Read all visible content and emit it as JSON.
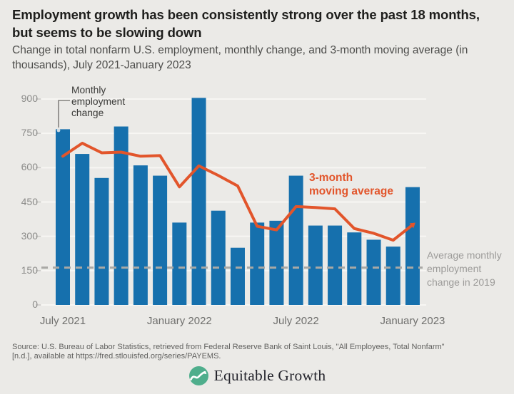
{
  "header": {
    "title": "Employment growth has been consistently strong over the past 18 months, but seems to be slowing down",
    "subtitle": "Change in total nonfarm U.S. employment, monthly change, and 3-month moving average (in thousands), July 2021-January 2023"
  },
  "chart_data": {
    "type": "bar",
    "title": "Employment growth has been consistently strong over the past 18 months, but seems to be slowing down",
    "subtitle": "Change in total nonfarm U.S. employment, monthly change, and 3-month moving average (in thousands), July 2021-January 2023",
    "unit": "thousands",
    "categories": [
      "Jul 2021",
      "Aug 2021",
      "Sep 2021",
      "Oct 2021",
      "Nov 2021",
      "Dec 2021",
      "Jan 2022",
      "Feb 2022",
      "Mar 2022",
      "Apr 2022",
      "May 2022",
      "Jun 2022",
      "Jul 2022",
      "Aug 2022",
      "Sep 2022",
      "Oct 2022",
      "Nov 2022",
      "Dec 2022",
      "Jan 2023"
    ],
    "series": [
      {
        "name": "Monthly employment change",
        "type": "bar",
        "color": "#1670ad",
        "values": [
          768,
          660,
          555,
          780,
          610,
          565,
          360,
          905,
          412,
          250,
          360,
          368,
          565,
          347,
          347,
          317,
          285,
          255,
          515
        ]
      },
      {
        "name": "3-month moving average",
        "type": "line",
        "color": "#e2552b",
        "values": [
          650,
          707,
          665,
          668,
          650,
          653,
          516,
          608,
          566,
          520,
          344,
          328,
          430,
          426,
          420,
          334,
          313,
          283,
          350
        ]
      }
    ],
    "reference_line": {
      "label": "Average monthly employment change in 2019",
      "value": 163,
      "style": "dashed",
      "color": "#a9a8a5"
    },
    "ylim": [
      0,
      900
    ],
    "yticks": [
      0,
      150,
      300,
      450,
      600,
      750,
      900
    ],
    "xticks": [
      {
        "index": 0,
        "label": "July 2021"
      },
      {
        "index": 6,
        "label": "January 2022"
      },
      {
        "index": 12,
        "label": "July 2022"
      },
      {
        "index": 18,
        "label": "January 2023"
      }
    ],
    "grid": "horizontal",
    "legend": "annotations-on-chart"
  },
  "annotations": {
    "bar_label": "Monthly\nemployment\nchange",
    "line_label": "3-month\nmoving average",
    "reference_label": "Average monthly\nemployment\nchange in 2019"
  },
  "footer": {
    "source": "Source: U.S. Bureau of Labor Statistics, retrieved from Federal Reserve Bank of Saint Louis, \"All Employees, Total Nonfarm\"\n[n.d.], available at https://fred.stlouisfed.org/series/PAYEMS.",
    "logo_text": "Equitable Growth"
  },
  "colors": {
    "background": "#ebeae7",
    "bar": "#1670ad",
    "moving_average_line": "#e2552b",
    "dashed_reference": "#a9a8a5",
    "gridline": "#f7f6f3",
    "title_text": "#1e1e1c",
    "subtitle_text": "#4d4d4b",
    "y_axis_text": "#8b8b89",
    "x_axis_text": "#6f6f6d",
    "bar_annotation_text": "#3a3a38",
    "reference_annotation_text": "#9c9b99",
    "source_text": "#61615f",
    "logo_green": "#4fae8c",
    "logo_text": "#24242c"
  }
}
